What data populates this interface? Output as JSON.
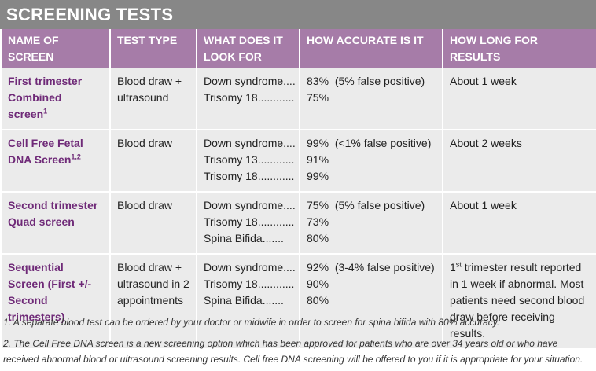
{
  "title": "SCREENING TESTS",
  "columns": [
    "NAME OF SCREEN",
    "TEST TYPE",
    "WHAT DOES IT LOOK FOR",
    "HOW ACCURATE IS IT",
    "HOW LONG FOR RESULTS"
  ],
  "rows": [
    {
      "name": "First trimester Combined screen",
      "name_sup": "1",
      "test_type": "Blood draw + ultrasound",
      "looks_for": [
        {
          "label": "Down syndrome",
          "dots": "...."
        },
        {
          "label": "Trisomy 18",
          "dots": "............"
        }
      ],
      "accuracy": [
        {
          "pct": "83%",
          "note": "(5% false positive)"
        },
        {
          "pct": "75%",
          "note": ""
        }
      ],
      "results": "About 1 week"
    },
    {
      "name": "Cell Free Fetal DNA Screen",
      "name_sup": "1,2",
      "test_type": "Blood draw",
      "looks_for": [
        {
          "label": "Down syndrome",
          "dots": "...."
        },
        {
          "label": "Trisomy 13",
          "dots": "............"
        },
        {
          "label": "Trisomy 18",
          "dots": "............"
        }
      ],
      "accuracy": [
        {
          "pct": "99%",
          "note": "(<1% false positive)"
        },
        {
          "pct": "91%",
          "note": ""
        },
        {
          "pct": "99%",
          "note": ""
        }
      ],
      "results": "About 2 weeks"
    },
    {
      "name": "Second trimester Quad screen",
      "name_sup": "",
      "test_type": "Blood draw",
      "looks_for": [
        {
          "label": "Down syndrome",
          "dots": "...."
        },
        {
          "label": "Trisomy 18",
          "dots": "............"
        },
        {
          "label": "Spina Bifida",
          "dots": "......."
        }
      ],
      "accuracy": [
        {
          "pct": "75%",
          "note": "(5% false positive)"
        },
        {
          "pct": "73%",
          "note": ""
        },
        {
          "pct": "80%",
          "note": ""
        }
      ],
      "results": "About 1 week"
    },
    {
      "name": "Sequential Screen (First +/- Second trimesters)",
      "name_sup": "",
      "test_type": "Blood draw + ultrasound in 2 appointments",
      "looks_for": [
        {
          "label": "Down syndrome",
          "dots": "...."
        },
        {
          "label": "Trisomy 18",
          "dots": "............"
        },
        {
          "label": "Spina Bifida",
          "dots": "......."
        }
      ],
      "accuracy": [
        {
          "pct": "92%",
          "note": "(3-4% false positive)"
        },
        {
          "pct": "90%",
          "note": ""
        },
        {
          "pct": "80%",
          "note": ""
        }
      ],
      "results_prefix": "1",
      "results_sup": "st",
      "results": " trimester result reported in 1 week if abnormal. Most patients need second blood draw before receiving results."
    }
  ],
  "footnotes": [
    "1. A separate blood test can be ordered by your doctor or midwife in order to screen for spina bifida with 80% accuracy.",
    "2. The Cell Free DNA screen is a new screening option which has been approved for patients who are over 34 years old or who have received abnormal blood or ultrasound screening results. Cell free DNA screening will be offered to you if it is appropriate for your situation."
  ]
}
